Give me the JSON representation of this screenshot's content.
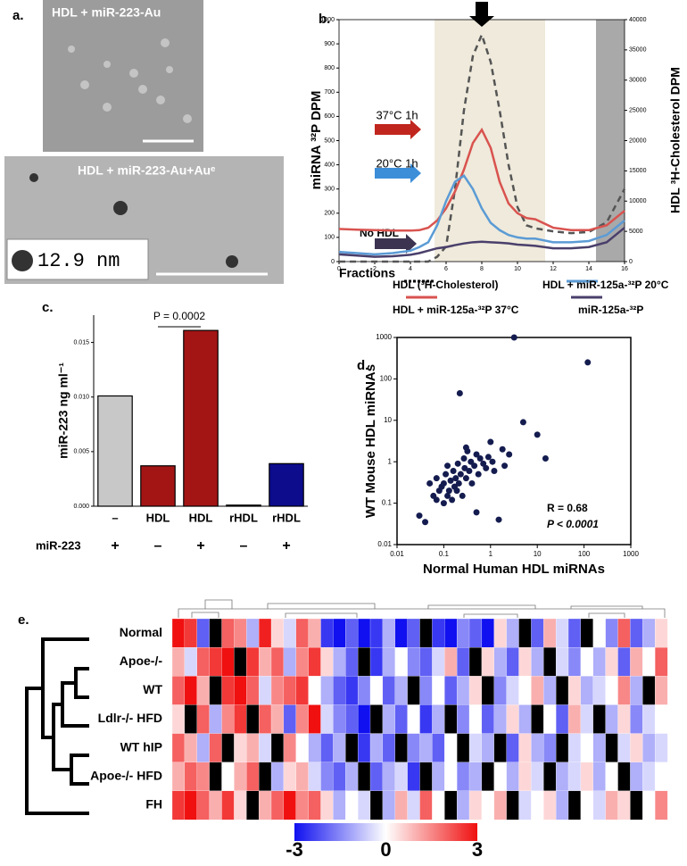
{
  "panel_a": {
    "panel_label": "a.",
    "images": [
      {
        "caption": "HDL + miR-223-Au"
      },
      {
        "caption": "HDL + miR-223-Au+Auᵉ",
        "inset_label": "12.9 nm"
      }
    ]
  },
  "chart_data": [
    {
      "panel_label": "b.",
      "type": "line",
      "x_label": "Fractions",
      "y_label": "miRNA ³²P DPM",
      "y2_label": "HDL ³H-Cholesterol DPM",
      "annotations": [
        "37°C 1h",
        "20°C 1h",
        "No HDL"
      ],
      "x": [
        0,
        1,
        2,
        3,
        4,
        4.5,
        5,
        5.5,
        6,
        6.5,
        7,
        7.5,
        8,
        8.5,
        9,
        9.5,
        10,
        10.5,
        11,
        12,
        13,
        14,
        15,
        16
      ],
      "xlim": [
        0,
        16
      ],
      "xticks": [
        0,
        2,
        4,
        6,
        8,
        10,
        12,
        14,
        16
      ],
      "ylim": [
        0,
        1000
      ],
      "yticks": [
        0,
        100,
        200,
        300,
        400,
        500,
        600,
        700,
        800,
        900,
        1000
      ],
      "y2lim": [
        0,
        40000
      ],
      "y2ticks": [
        0,
        5000,
        10000,
        15000,
        20000,
        25000,
        30000,
        35000,
        40000
      ],
      "series": [
        {
          "name": "HDL (³H-Cholesterol)",
          "color": "#555555",
          "dash": true,
          "axis": "y2",
          "values": [
            0,
            0,
            0,
            0,
            0,
            0,
            0,
            800,
            2500,
            12000,
            25000,
            34000,
            37500,
            33000,
            25000,
            16000,
            9000,
            6000,
            5500,
            5000,
            4700,
            4900,
            6500,
            12000
          ]
        },
        {
          "name": "HDL + miR-125a-³²P 37°C",
          "color": "#d9534f",
          "values": [
            135,
            132,
            130,
            128,
            128,
            130,
            140,
            170,
            220,
            290,
            380,
            490,
            545,
            470,
            330,
            240,
            200,
            180,
            175,
            140,
            130,
            130,
            150,
            210
          ]
        },
        {
          "name": "HDL + miR-125a-³²P 20°C",
          "color": "#5b9bd5",
          "values": [
            40,
            35,
            30,
            35,
            45,
            60,
            80,
            150,
            250,
            330,
            355,
            300,
            220,
            160,
            130,
            110,
            100,
            95,
            95,
            80,
            80,
            85,
            110,
            170
          ]
        },
        {
          "name": "miR-125a-³²P",
          "color": "#4a3f6b",
          "values": [
            30,
            25,
            20,
            22,
            28,
            35,
            45,
            55,
            60,
            68,
            75,
            80,
            82,
            80,
            78,
            75,
            70,
            68,
            65,
            55,
            55,
            60,
            80,
            140
          ]
        }
      ]
    },
    {
      "panel_label": "c.",
      "type": "bar",
      "y_label": "miR-223 ng ml⁻¹",
      "annotation": "P = 0.0002",
      "categories": [
        "–",
        "HDL",
        "HDL",
        "rHDL",
        "rHDL"
      ],
      "row_label": {
        "name": "miR-223",
        "values": [
          "+",
          "–",
          "+",
          "–",
          "+"
        ]
      },
      "values": [
        0.0101,
        0.0037,
        0.0161,
        0.0001,
        0.0039
      ],
      "colors": [
        "#c8c8c8",
        "#a31515",
        "#a31515",
        "#ffffff",
        "#0c0c8c"
      ],
      "ylim": [
        0,
        0.0175
      ],
      "yticks": [
        {
          "value": 0,
          "label": "0.000"
        },
        {
          "value": 0.005,
          "label": "0.005"
        },
        {
          "value": 0.01,
          "label": "0.010"
        },
        {
          "value": 0.015,
          "label": "0.015"
        }
      ]
    },
    {
      "panel_label": "d.",
      "type": "scatter",
      "log_scale": true,
      "color": "#141c4f",
      "x_label": "Normal Human HDL miRNAs",
      "y_label": "WT Mouse HDL miRNAs",
      "annotations": [
        "R = 0.68",
        "P < 0.0001"
      ],
      "xlim": [
        0.01,
        1000
      ],
      "ylim": [
        0.01,
        1000
      ],
      "xticks": [
        0.01,
        0.1,
        1,
        10,
        100,
        1000
      ],
      "yticks": [
        0.01,
        0.1,
        1,
        10,
        100,
        1000
      ],
      "x": [
        0.03,
        0.04,
        0.05,
        0.06,
        0.07,
        0.07,
        0.08,
        0.09,
        0.1,
        0.1,
        0.11,
        0.12,
        0.12,
        0.13,
        0.14,
        0.15,
        0.16,
        0.17,
        0.18,
        0.19,
        0.2,
        0.21,
        0.22,
        0.23,
        0.25,
        0.27,
        0.28,
        0.3,
        0.3,
        0.32,
        0.35,
        0.38,
        0.4,
        0.45,
        0.5,
        0.5,
        0.55,
        0.6,
        0.7,
        0.8,
        0.9,
        1,
        1.1,
        1.2,
        1.5,
        1.8,
        2,
        2.5,
        3.2,
        5,
        10,
        15,
        120
      ],
      "y": [
        0.05,
        0.035,
        0.3,
        0.15,
        0.12,
        0.4,
        0.2,
        0.25,
        0.1,
        0.3,
        0.5,
        0.15,
        0.8,
        0.2,
        0.35,
        0.12,
        0.6,
        0.25,
        0.4,
        0.2,
        0.9,
        0.3,
        45,
        0.5,
        0.15,
        1.2,
        0.7,
        2.2,
        0.4,
        1.8,
        0.6,
        1,
        0.3,
        0.8,
        0.06,
        1.5,
        0.5,
        1.2,
        0.9,
        0.7,
        1.3,
        3,
        1,
        0.6,
        0.04,
        2,
        0.8,
        1.5,
        1000,
        9,
        4.5,
        1.2,
        250
      ]
    },
    {
      "panel_label": "e.",
      "type": "heatmap",
      "rows": [
        "Normal",
        "Apoe-/-",
        "WT",
        "Ldlr-/- HFD",
        "WT hIP",
        "Apoe-/- HFD",
        "FH"
      ],
      "colorbar": {
        "min": -3,
        "max": 3,
        "ticks": [
          -3,
          0,
          3
        ]
      },
      "colors": [
        "#1010f0",
        "#ffffff",
        "#f01010"
      ],
      "missing_color": "#000000",
      "values": [
        [
          3,
          2.5,
          -2,
          null,
          2,
          1.5,
          -1,
          2.8,
          0.5,
          -0.5,
          2,
          1,
          -2.5,
          -3,
          -2,
          -3,
          -2.5,
          -1,
          -3,
          -2,
          null,
          -2.5,
          -3,
          -1.5,
          -2,
          -3,
          0.5,
          -1,
          null,
          -2,
          1,
          -0.5,
          -2,
          null,
          0,
          -1.5,
          2,
          -2,
          -1,
          0.5
        ],
        [
          1,
          -0.5,
          2,
          2.5,
          3,
          null,
          2.5,
          1,
          2,
          -1,
          1.5,
          2.5,
          0.5,
          -1,
          -2,
          null,
          -2.5,
          -1,
          0,
          -1.5,
          -2,
          -0.5,
          1,
          -2,
          null,
          0.5,
          -1,
          -2,
          0.5,
          -1,
          null,
          -0.5,
          -1.5,
          0,
          -1,
          0.5,
          -2,
          1,
          0,
          2
        ],
        [
          2,
          3,
          1,
          null,
          2.5,
          3,
          2,
          -0.5,
          1.5,
          2,
          2.5,
          0,
          -1,
          -2,
          -2.5,
          -1.5,
          0,
          -2,
          -1,
          null,
          -1.5,
          0,
          -2,
          -1,
          0.5,
          null,
          -1.5,
          -0.5,
          0,
          1,
          -1,
          null,
          0.5,
          -1,
          -0.5,
          0,
          1.5,
          -1,
          null,
          1
        ],
        [
          0.5,
          null,
          2,
          -1,
          1.5,
          2.5,
          null,
          2,
          1,
          -2,
          1.5,
          3,
          -0.5,
          -1.5,
          -2,
          -3,
          null,
          -1,
          -2,
          0,
          -2.5,
          -1,
          null,
          -1.5,
          0,
          -2,
          -1,
          0.5,
          -1,
          null,
          0,
          -2,
          1,
          -0.5,
          null,
          -1,
          0.5,
          -1.5,
          -0.5,
          0
        ],
        [
          2,
          1,
          -1,
          2,
          null,
          0.5,
          1,
          -0.5,
          null,
          1.5,
          0,
          -1,
          -2,
          -1,
          null,
          -2.5,
          -1,
          -2,
          null,
          -1.5,
          -1,
          -2,
          0,
          null,
          -0.5,
          -1,
          null,
          -2,
          0.5,
          -1,
          -1.5,
          null,
          -0.5,
          0,
          -1,
          null,
          -0.5,
          0.5,
          -1,
          -0.5
        ],
        [
          1,
          2,
          1.5,
          null,
          0,
          1,
          2,
          null,
          -1,
          0.5,
          1,
          -0.5,
          -1.5,
          -2,
          -1,
          null,
          -2,
          -1,
          -0.5,
          -2.5,
          null,
          -1,
          0,
          -1.5,
          -1,
          null,
          0,
          -1,
          0.5,
          -0.5,
          null,
          -1,
          -0.5,
          0.5,
          -1,
          0,
          null,
          -1,
          -0.5,
          0
        ],
        [
          2.5,
          3,
          2,
          1,
          2.5,
          0.5,
          null,
          1,
          2,
          3,
          1.5,
          2,
          0.5,
          -1,
          0,
          -0.5,
          null,
          -1,
          1,
          -0.5,
          2,
          0,
          null,
          -1,
          0.5,
          0,
          1,
          null,
          -0.5,
          0,
          0.5,
          -1,
          null,
          0,
          -0.5,
          1,
          0.5,
          null,
          0,
          1.5
        ]
      ]
    }
  ]
}
